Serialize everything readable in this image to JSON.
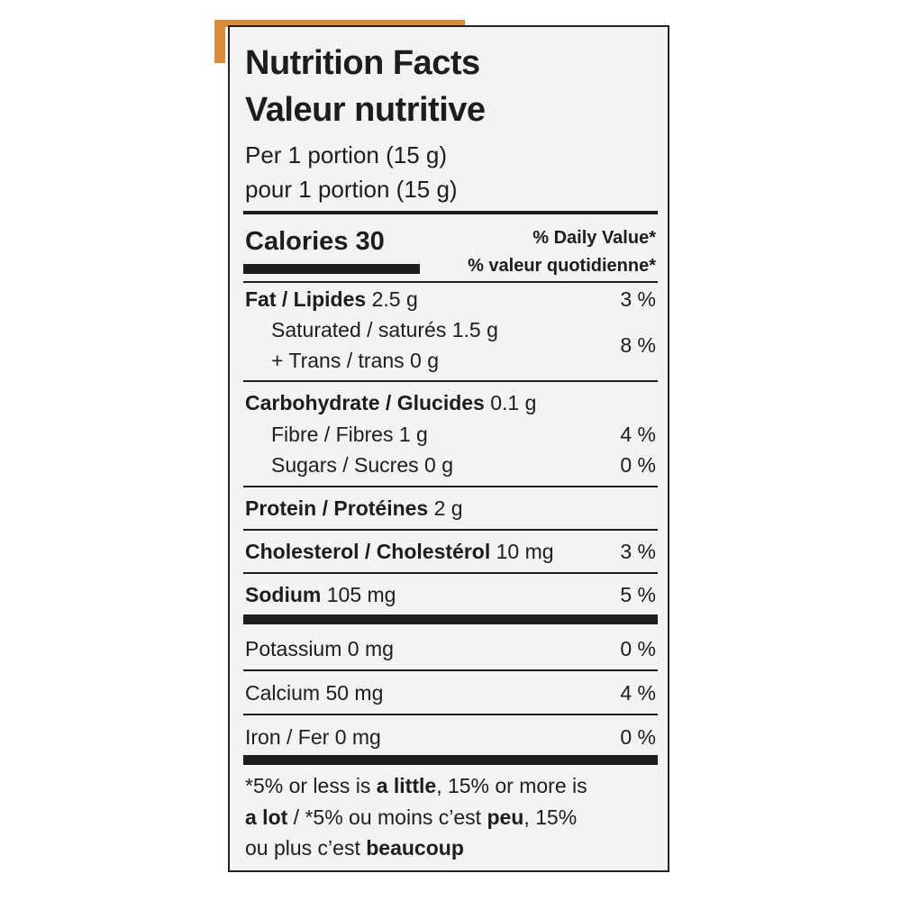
{
  "header": {
    "title_en": "Nutrition Facts",
    "title_fr": "Valeur nutritive",
    "serving_en": "Per 1 portion (15 g)",
    "serving_fr": "pour 1 portion (15 g)"
  },
  "calories": "Calories 30",
  "daily_value_header": {
    "en": "% Daily Value*",
    "fr": "% valeur quotidienne*"
  },
  "rows": {
    "fat": {
      "name": "Fat / Lipides",
      "amount": " 2.5 g",
      "dv": "3 %"
    },
    "saturated": {
      "line1": "Saturated / saturés 1.5 g",
      "line2": "+ Trans / trans 0 g",
      "dv": "8 %"
    },
    "carbohydrate": {
      "name": "Carbohydrate / Glucides",
      "amount": " 0.1 g"
    },
    "fibre": {
      "name": "Fibre / Fibres 1 g",
      "dv": "4 %"
    },
    "sugars": {
      "name": "Sugars / Sucres 0 g",
      "dv": "0 %"
    },
    "protein": {
      "name": "Protein / Protéines",
      "amount": " 2 g"
    },
    "cholesterol": {
      "name": "Cholesterol / Cholestérol",
      "amount": " 10 mg",
      "dv": "3 %"
    },
    "sodium": {
      "name": "Sodium",
      "amount": " 105 mg",
      "dv": "5 %"
    },
    "potassium": {
      "name": "Potassium 0 mg",
      "dv": "0 %"
    },
    "calcium": {
      "name": "Calcium 50 mg",
      "dv": "4 %"
    },
    "iron": {
      "name": "Iron / Fer 0 mg",
      "dv": "0 %"
    }
  },
  "footnote": {
    "line1": [
      "*5% or less is ",
      "a little",
      ", 15% or more is"
    ],
    "line2": [
      "a lot",
      " / *5% ou moins c’est ",
      "peu",
      ", 15%"
    ],
    "line3": [
      "ou plus c’est ",
      "beaucoup"
    ]
  }
}
